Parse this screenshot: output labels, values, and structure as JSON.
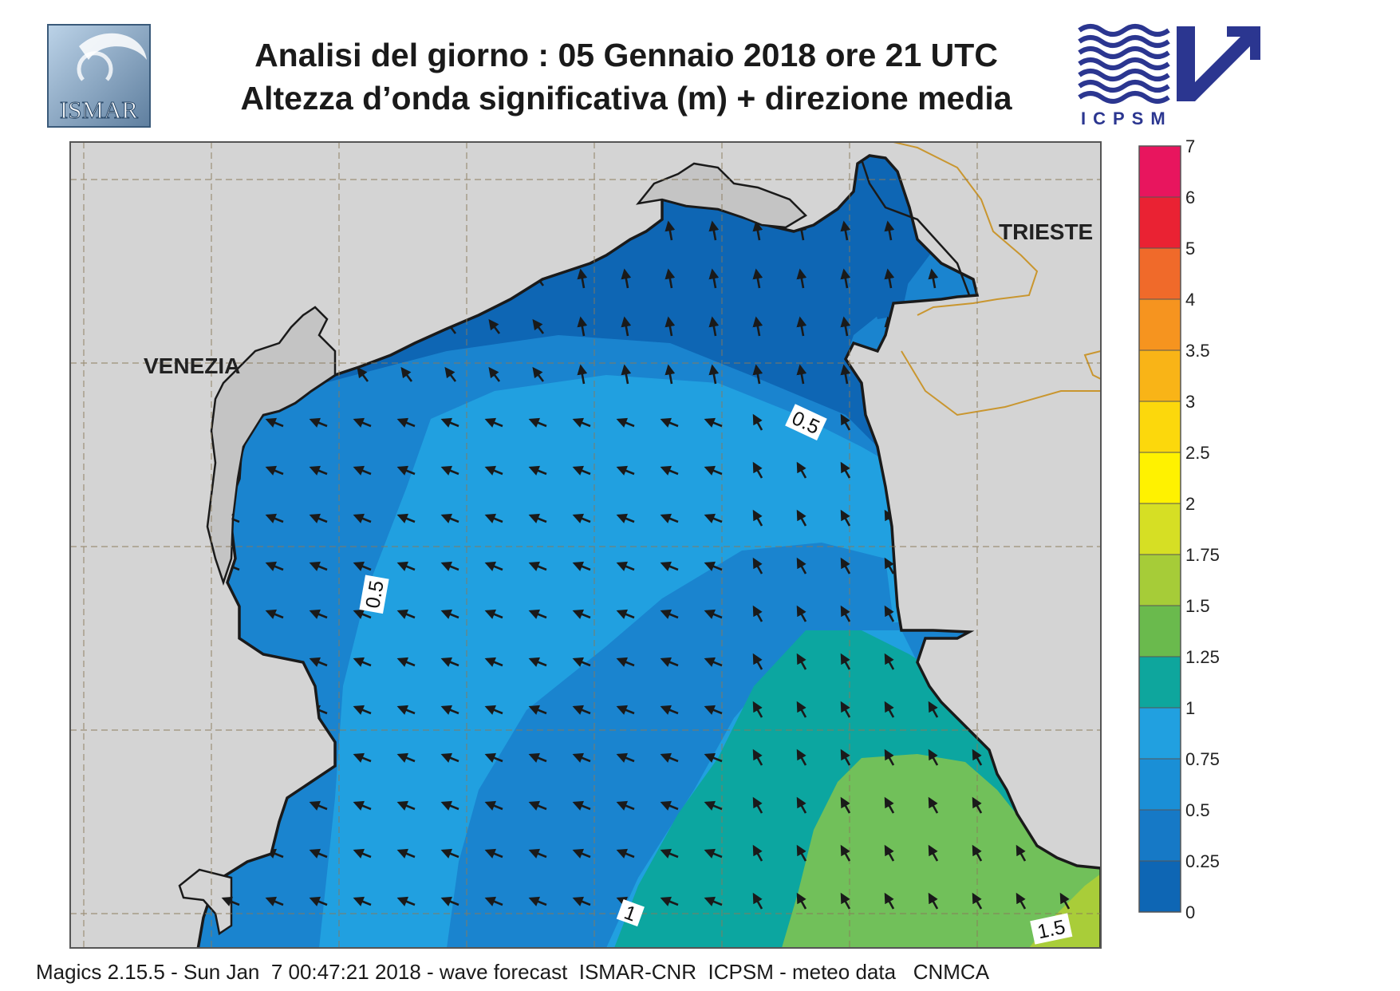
{
  "header": {
    "title_line1": "Analisi del giorno :  05  Gennaio  2018   ore 21 UTC",
    "title_line2": "Altezza d’onda significativa (m) + direzione media"
  },
  "logos": {
    "left": {
      "text": "ISMAR",
      "icon": "ismar-logo-icon"
    },
    "right": {
      "text": "ICPSM",
      "icon": "icpsm-wave-arrow-icon"
    }
  },
  "map": {
    "cities": [
      {
        "name": "VENEZIA"
      },
      {
        "name": "TRIESTE"
      }
    ],
    "contour_labels": [
      "0.5",
      "0.5",
      "1",
      "1.5"
    ],
    "wave_direction": "towards north-west",
    "land_color": "#d4d4d4",
    "sea_band_colors": [
      "#0e66b4",
      "#1a84cf",
      "#21a0e0",
      "#0ca6a0",
      "#71c05a",
      "#a9cd39"
    ]
  },
  "colorbar": {
    "ticks": [
      "7",
      "6",
      "5",
      "4",
      "3.5",
      "3",
      "2.5",
      "2",
      "1.75",
      "1.5",
      "1.25",
      "1",
      "0.75",
      "0.5",
      "0.25",
      "0"
    ],
    "colors": [
      "#e8155e",
      "#ea2233",
      "#f06a2a",
      "#f6941f",
      "#f9b417",
      "#fcd80c",
      "#fff200",
      "#d6df24",
      "#a6cc38",
      "#6aba4d",
      "#0ea69d",
      "#21a0e0",
      "#1a8fd6",
      "#1679c6",
      "#0e66b4"
    ]
  },
  "footer": {
    "text": "Magics 2.15.5 - Sun Jan  7 00:47:21 2018 - wave forecast  ISMAR-CNR  ICPSM - meteo data   CNMCA"
  }
}
